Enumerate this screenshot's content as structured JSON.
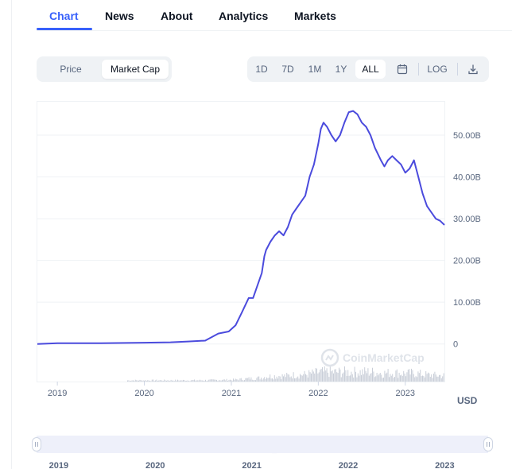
{
  "tabs": [
    {
      "label": "Chart",
      "active": true
    },
    {
      "label": "News"
    },
    {
      "label": "About"
    },
    {
      "label": "Analytics"
    },
    {
      "label": "Markets"
    }
  ],
  "chart_type_toggle": {
    "price_label": "Price",
    "marketcap_label": "Market Cap",
    "selected": "Market Cap"
  },
  "range": {
    "buttons": [
      "1D",
      "7D",
      "1M",
      "1Y",
      "ALL"
    ],
    "selected": "ALL",
    "log_label": "LOG",
    "icons": [
      "calendar-icon",
      "download-icon"
    ]
  },
  "watermark": "CoinMarketCap",
  "currency_label": "USD",
  "colors": {
    "accent": "#3861fb",
    "line": "#4b4bdd",
    "volume": "#c9ced8",
    "grid": "#eff2f5",
    "navigator": "#eef0fa"
  },
  "chart_data": {
    "type": "line",
    "title": "",
    "xlabel": "",
    "ylabel": "",
    "x_ticks": [
      "2019",
      "2020",
      "2021",
      "2022",
      "2023"
    ],
    "y_ticks": [
      "0",
      "10.00B",
      "20.00B",
      "30.00B",
      "40.00B",
      "50.00B"
    ],
    "ylim": [
      -9,
      58
    ],
    "xlim": [
      2018.77,
      2023.45
    ],
    "y_units": "billions USD",
    "grid": true,
    "series": [
      {
        "x": [
          2018.77,
          2019.0,
          2019.5,
          2020.0,
          2020.3,
          2020.5,
          2020.7,
          2020.85,
          2020.97,
          2021.05,
          2021.12,
          2021.2,
          2021.25,
          2021.3,
          2021.35,
          2021.38,
          2021.4,
          2021.45,
          2021.5,
          2021.55,
          2021.6,
          2021.65,
          2021.7,
          2021.75,
          2021.8,
          2021.85,
          2021.9,
          2021.95,
          2022.0,
          2022.03,
          2022.06,
          2022.1,
          2022.15,
          2022.2,
          2022.25,
          2022.3,
          2022.35,
          2022.4,
          2022.45,
          2022.5,
          2022.55,
          2022.6,
          2022.65,
          2022.72,
          2022.76,
          2022.8,
          2022.85,
          2022.9,
          2022.95,
          2023.0,
          2023.05,
          2023.1,
          2023.15,
          2023.2,
          2023.25,
          2023.3,
          2023.35,
          2023.4,
          2023.45
        ],
        "y": [
          0,
          0.2,
          0.2,
          0.3,
          0.4,
          0.6,
          0.8,
          2.5,
          3,
          4.5,
          7.5,
          11,
          11,
          14,
          17,
          21,
          22.5,
          24.5,
          26,
          27,
          26,
          28,
          31,
          32.5,
          34,
          35.5,
          40,
          43,
          48,
          51.5,
          53,
          52,
          50,
          48.5,
          50,
          53,
          55.5,
          55.8,
          55,
          53,
          52,
          50,
          47,
          44,
          42.5,
          44,
          45,
          44,
          43,
          41,
          42,
          44,
          40,
          36,
          33,
          31.5,
          30,
          29.5,
          28.5
        ]
      }
    ],
    "volume_series": true,
    "navigator_ticks": [
      "2019",
      "2020",
      "2021",
      "2022",
      "2023"
    ]
  }
}
